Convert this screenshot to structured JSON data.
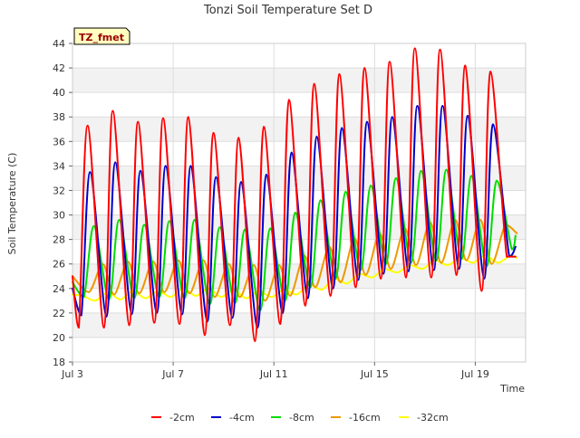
{
  "chart_data": {
    "type": "line",
    "title": "Tonzi Soil Temperature Set D",
    "xlabel": "Time",
    "ylabel": "Soil Temperature (C)",
    "site_tag": "TZ_fmet",
    "x_unit": "day of July",
    "xlim": [
      3,
      21
    ],
    "ylim": [
      18,
      44
    ],
    "y_ticks": [
      18,
      20,
      22,
      24,
      26,
      28,
      30,
      32,
      34,
      36,
      38,
      40,
      42,
      44
    ],
    "x_ticks": [
      {
        "value": 3,
        "label": "Jul 3"
      },
      {
        "value": 7,
        "label": "Jul 7"
      },
      {
        "value": 11,
        "label": "Jul 11"
      },
      {
        "value": 15,
        "label": "Jul 15"
      },
      {
        "value": 19,
        "label": "Jul 19"
      }
    ],
    "grid": true,
    "legend_position": "bottom",
    "series": [
      {
        "name": "-2cm",
        "color": "#ff0000",
        "x": [
          3.0,
          3.25,
          3.6,
          4.25,
          4.6,
          5.25,
          5.6,
          6.25,
          6.6,
          7.25,
          7.6,
          8.25,
          8.6,
          9.25,
          9.6,
          10.25,
          10.6,
          11.25,
          11.6,
          12.25,
          12.6,
          13.25,
          13.6,
          14.25,
          14.6,
          15.25,
          15.6,
          16.25,
          16.6,
          17.25,
          17.6,
          18.25,
          18.6,
          19.25,
          19.6,
          20.25,
          20.6
        ],
        "values": [
          25.0,
          20.8,
          37.3,
          20.8,
          38.5,
          21.0,
          37.6,
          21.2,
          37.9,
          21.1,
          38.0,
          20.2,
          36.7,
          21.0,
          36.3,
          19.7,
          37.2,
          21.1,
          39.4,
          22.6,
          40.7,
          23.4,
          41.5,
          24.1,
          42.0,
          24.8,
          42.5,
          24.9,
          43.6,
          24.9,
          43.5,
          25.1,
          42.2,
          23.8,
          41.7,
          26.6,
          26.6
        ]
      },
      {
        "name": "-4cm",
        "color": "#0000cc",
        "x": [
          3.0,
          3.35,
          3.7,
          4.35,
          4.7,
          5.35,
          5.7,
          6.35,
          6.7,
          7.35,
          7.7,
          8.35,
          8.7,
          9.35,
          9.7,
          10.35,
          10.7,
          11.35,
          11.7,
          12.35,
          12.7,
          13.35,
          13.7,
          14.35,
          14.7,
          15.35,
          15.7,
          16.35,
          16.7,
          17.35,
          17.7,
          18.35,
          18.7,
          19.35,
          19.7,
          20.35,
          20.6
        ],
        "values": [
          24.0,
          21.8,
          33.5,
          21.7,
          34.3,
          21.9,
          33.6,
          22.0,
          34.0,
          21.9,
          34.0,
          21.3,
          33.1,
          21.6,
          32.7,
          20.8,
          33.3,
          22.0,
          35.1,
          23.2,
          36.4,
          24.0,
          37.1,
          24.7,
          37.6,
          25.2,
          38.0,
          25.4,
          38.9,
          25.5,
          38.9,
          25.6,
          38.1,
          24.8,
          37.4,
          26.6,
          27.4
        ]
      },
      {
        "name": "-8cm",
        "color": "#00dd00",
        "x": [
          3.0,
          3.45,
          3.85,
          4.45,
          4.85,
          5.45,
          5.85,
          6.45,
          6.85,
          7.45,
          7.85,
          8.45,
          8.85,
          9.45,
          9.85,
          10.45,
          10.85,
          11.45,
          11.85,
          12.45,
          12.85,
          13.45,
          13.85,
          14.45,
          14.85,
          15.45,
          15.85,
          16.45,
          16.85,
          17.45,
          17.85,
          18.45,
          18.85,
          19.45,
          19.85,
          20.45,
          20.6
        ],
        "values": [
          24.5,
          23.3,
          29.1,
          23.1,
          29.6,
          23.2,
          29.2,
          23.3,
          29.5,
          23.2,
          29.6,
          22.7,
          29.0,
          22.8,
          28.8,
          22.2,
          28.9,
          23.0,
          30.2,
          24.1,
          31.2,
          24.8,
          31.9,
          25.5,
          32.4,
          26.0,
          33.0,
          26.1,
          33.6,
          26.3,
          33.7,
          26.4,
          33.2,
          25.8,
          32.8,
          27.2,
          28.3
        ]
      },
      {
        "name": "-16cm",
        "color": "#ee9900",
        "x": [
          3.0,
          3.65,
          4.2,
          4.65,
          5.2,
          5.65,
          6.2,
          6.65,
          7.2,
          7.65,
          8.2,
          8.65,
          9.2,
          9.65,
          10.2,
          10.65,
          11.2,
          11.65,
          12.2,
          12.65,
          13.2,
          13.65,
          14.2,
          14.65,
          15.2,
          15.65,
          16.2,
          16.65,
          17.2,
          17.65,
          18.2,
          18.65,
          19.2,
          19.65,
          20.2,
          20.65
        ],
        "values": [
          25.0,
          23.7,
          26.0,
          23.5,
          26.2,
          23.6,
          26.2,
          23.7,
          26.3,
          23.6,
          26.3,
          23.3,
          26.0,
          23.3,
          25.9,
          23.0,
          25.9,
          23.4,
          26.7,
          24.1,
          27.4,
          24.5,
          28.1,
          25.1,
          28.5,
          25.6,
          28.9,
          25.9,
          29.4,
          26.1,
          29.6,
          26.3,
          29.6,
          26.0,
          29.2,
          28.5
        ]
      },
      {
        "name": "-32cm",
        "color": "#ffff00",
        "x": [
          3.0,
          3.4,
          3.9,
          4.4,
          4.9,
          5.4,
          5.9,
          6.4,
          6.9,
          7.4,
          7.9,
          8.4,
          8.9,
          9.4,
          9.9,
          10.4,
          10.9,
          11.4,
          11.9,
          12.4,
          12.9,
          13.4,
          13.9,
          14.4,
          14.9,
          15.4,
          15.9,
          16.4,
          16.9,
          17.4,
          17.9,
          18.4,
          18.9,
          19.4,
          19.9,
          20.4,
          20.65
        ],
        "values": [
          23.5,
          23.4,
          23.0,
          23.7,
          23.1,
          23.8,
          23.2,
          23.8,
          23.3,
          24.0,
          23.4,
          24.0,
          23.3,
          23.9,
          23.2,
          23.8,
          23.3,
          23.9,
          23.5,
          24.3,
          23.9,
          24.8,
          24.4,
          25.2,
          24.9,
          25.6,
          25.3,
          25.9,
          25.6,
          26.3,
          25.9,
          26.5,
          26.1,
          26.7,
          26.1,
          26.7,
          26.5
        ]
      }
    ]
  }
}
